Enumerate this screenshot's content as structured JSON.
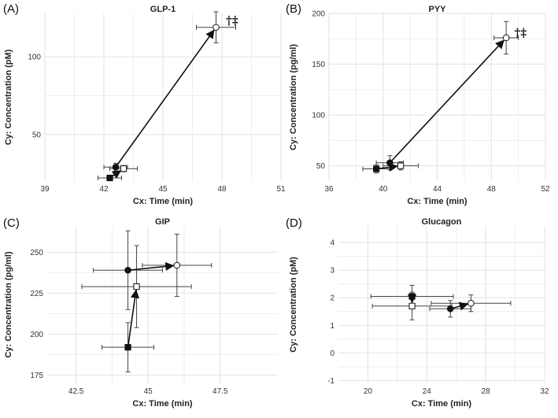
{
  "chart_data": [
    {
      "panel": "(A)",
      "type": "scatter",
      "title": "GLP-1",
      "xlabel": "Cx: Time (min)",
      "ylabel": "Cy: Concentration (pM)",
      "xlim": [
        39,
        51
      ],
      "ylim": [
        20,
        128
      ],
      "xticks": [
        39,
        42,
        45,
        48,
        51
      ],
      "yticks": [
        50,
        100
      ],
      "grid": true,
      "annotation": {
        "text": "†‡",
        "x": 48.2,
        "y": 121
      },
      "points": [
        {
          "name": "filled-square",
          "x": 42.3,
          "y": 22,
          "xerr": 0.6,
          "yerr": 1.5,
          "marker": "square",
          "filled": true
        },
        {
          "name": "open-square",
          "x": 43.0,
          "y": 28,
          "xerr": 0.7,
          "yerr": 2.0,
          "marker": "square",
          "filled": false
        },
        {
          "name": "filled-circle",
          "x": 42.6,
          "y": 29,
          "xerr": 0.6,
          "yerr": 2.5,
          "marker": "circle",
          "filled": true
        },
        {
          "name": "open-circle",
          "x": 47.7,
          "y": 119,
          "xerr": 1.0,
          "yerr": 10,
          "marker": "circle",
          "filled": false
        }
      ],
      "arrows": [
        {
          "from": 0,
          "to": 1
        },
        {
          "from": 2,
          "to": 3
        }
      ]
    },
    {
      "panel": "(B)",
      "type": "scatter",
      "title": "PYY",
      "xlabel": "Cx: Time (min)",
      "ylabel": "Cy: Concentration (pg/ml)",
      "xlim": [
        36,
        52
      ],
      "ylim": [
        35,
        200
      ],
      "xticks": [
        36,
        40,
        44,
        48,
        52
      ],
      "yticks": [
        50,
        100,
        150,
        200
      ],
      "grid": true,
      "annotation": {
        "text": "†‡",
        "x": 49.7,
        "y": 177
      },
      "points": [
        {
          "name": "filled-square",
          "x": 39.5,
          "y": 47,
          "xerr": 1.0,
          "yerr": 4,
          "marker": "square",
          "filled": true
        },
        {
          "name": "open-square",
          "x": 41.3,
          "y": 50,
          "xerr": 1.3,
          "yerr": 4,
          "marker": "square",
          "filled": false
        },
        {
          "name": "filled-circle",
          "x": 40.5,
          "y": 53,
          "xerr": 1.0,
          "yerr": 7,
          "marker": "circle",
          "filled": true
        },
        {
          "name": "open-circle",
          "x": 49.1,
          "y": 176,
          "xerr": 0.9,
          "yerr": 16,
          "marker": "circle",
          "filled": false
        }
      ],
      "arrows": [
        {
          "from": 0,
          "to": 1
        },
        {
          "from": 2,
          "to": 3
        }
      ]
    },
    {
      "panel": "(C)",
      "type": "scatter",
      "title": "GIP",
      "xlabel": "Cx: Time (min)",
      "ylabel": "Cy: Concentration (pg/ml)",
      "xlim": [
        41.5,
        49.5
      ],
      "ylim": [
        170,
        266
      ],
      "xticks": [
        42.5,
        45.0,
        47.5
      ],
      "yticks": [
        175,
        200,
        225,
        250
      ],
      "grid": true,
      "points": [
        {
          "name": "filled-square",
          "x": 44.3,
          "y": 192,
          "xerr": 0.9,
          "yerr": 15,
          "marker": "square",
          "filled": true
        },
        {
          "name": "open-square",
          "x": 44.6,
          "y": 229,
          "xerr": 1.9,
          "yerr": 25,
          "marker": "square",
          "filled": false
        },
        {
          "name": "filled-circle",
          "x": 44.3,
          "y": 239,
          "xerr": 1.2,
          "yerr": 24,
          "marker": "circle",
          "filled": true
        },
        {
          "name": "open-circle",
          "x": 46.0,
          "y": 242,
          "xerr": 1.2,
          "yerr": 19,
          "marker": "circle",
          "filled": false
        }
      ],
      "arrows": [
        {
          "from": 0,
          "to": 1
        },
        {
          "from": 2,
          "to": 3
        }
      ]
    },
    {
      "panel": "(D)",
      "type": "scatter",
      "title": "Glucagon",
      "xlabel": "Cx: Time (min)",
      "ylabel": "Cy: Concentration (pM)",
      "xlim": [
        18,
        32
      ],
      "ylim": [
        -1.1,
        4.6
      ],
      "xticks": [
        20,
        24,
        28,
        32
      ],
      "yticks": [
        -1,
        0,
        1,
        2,
        3,
        4
      ],
      "grid": true,
      "points": [
        {
          "name": "filled-square",
          "x": 23.0,
          "y": 2.05,
          "xerr": 2.8,
          "yerr": 0.4,
          "marker": "square",
          "filled": true
        },
        {
          "name": "open-square",
          "x": 23.0,
          "y": 1.7,
          "xerr": 2.7,
          "yerr": 0.5,
          "marker": "square",
          "filled": false
        },
        {
          "name": "filled-circle",
          "x": 25.6,
          "y": 1.6,
          "xerr": 1.4,
          "yerr": 0.3,
          "marker": "circle",
          "filled": true
        },
        {
          "name": "open-circle",
          "x": 27.0,
          "y": 1.8,
          "xerr": 2.7,
          "yerr": 0.3,
          "marker": "circle",
          "filled": false
        }
      ],
      "arrows": [
        {
          "from": 0,
          "to": 1
        },
        {
          "from": 2,
          "to": 3
        }
      ]
    }
  ]
}
